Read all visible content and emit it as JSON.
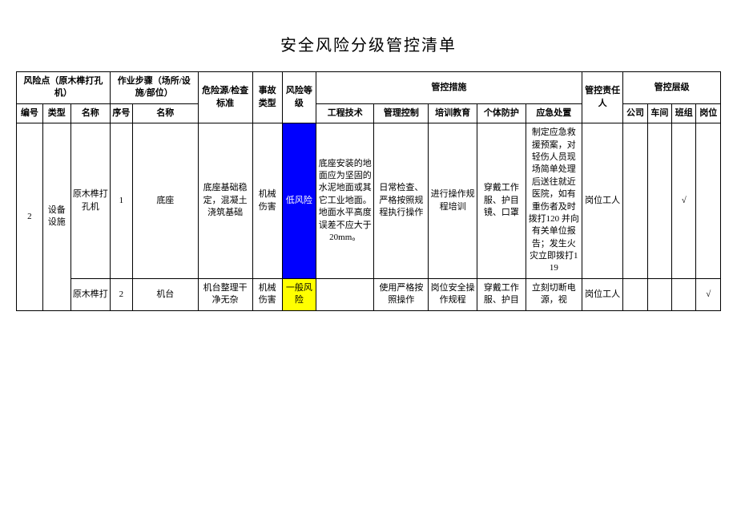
{
  "title": "安全风险分级管控清单",
  "header": {
    "risk_point": "风险点（原木榫打孔机）",
    "work_step": "作业步骤（场所/设施/部位）",
    "hazard_std": "危险源/检查标准",
    "accident_type": "事故类型",
    "risk_level": "风险等级",
    "measures": "管控措施",
    "responsible": "管控责任人",
    "ctrl_level": "管控层级",
    "num": "编号",
    "type": "类型",
    "name": "名称",
    "seq": "序号",
    "stepname": "名称",
    "eng": "工程技术",
    "mgmt": "管理控制",
    "train": "培训教育",
    "ppe": "个体防护",
    "emerg": "应急处置",
    "company": "公司",
    "workshop": "车间",
    "team": "班组",
    "post": "岗位"
  },
  "rows": [
    {
      "num": "2",
      "type": "设备设施",
      "name": "原木榫打孔机",
      "seq": "1",
      "stepname": "底座",
      "hazard": "底座基础稳定，混凝土浇筑基础",
      "accident": "机械伤害",
      "risk_level": "低风险",
      "risk_class": "risk-low",
      "eng": "底座安装的地面应为坚固的水泥地面或其它工业地面。地面水平高度误差不应大于20mm。",
      "mgmt": "日常检查、严格按照规程执行操作",
      "train": "进行操作规程培训",
      "ppe": "穿戴工作服、护目镜、口罩",
      "emerg": "制定应急救援预案，对轻伤人员现场简单处理后送往就近医院，如有重伤者及时拨打120 并向有关单位报告；发生火灾立即拨打119",
      "responsible": "岗位工人",
      "company": "",
      "workshop": "",
      "team": "√",
      "post": ""
    },
    {
      "name": "原木榫打",
      "seq": "2",
      "stepname": "机台",
      "hazard": "机台整理干净无杂",
      "accident": "机械伤害",
      "risk_level": "一般风险",
      "risk_class": "risk-general",
      "eng": "",
      "mgmt": "使用严格按照操作",
      "train": "岗位安全操作规程",
      "ppe": "穿戴工作服、护目",
      "emerg": "立刻切断电源，视",
      "responsible": "岗位工人",
      "company": "",
      "workshop": "",
      "team": "",
      "post": "√"
    }
  ]
}
